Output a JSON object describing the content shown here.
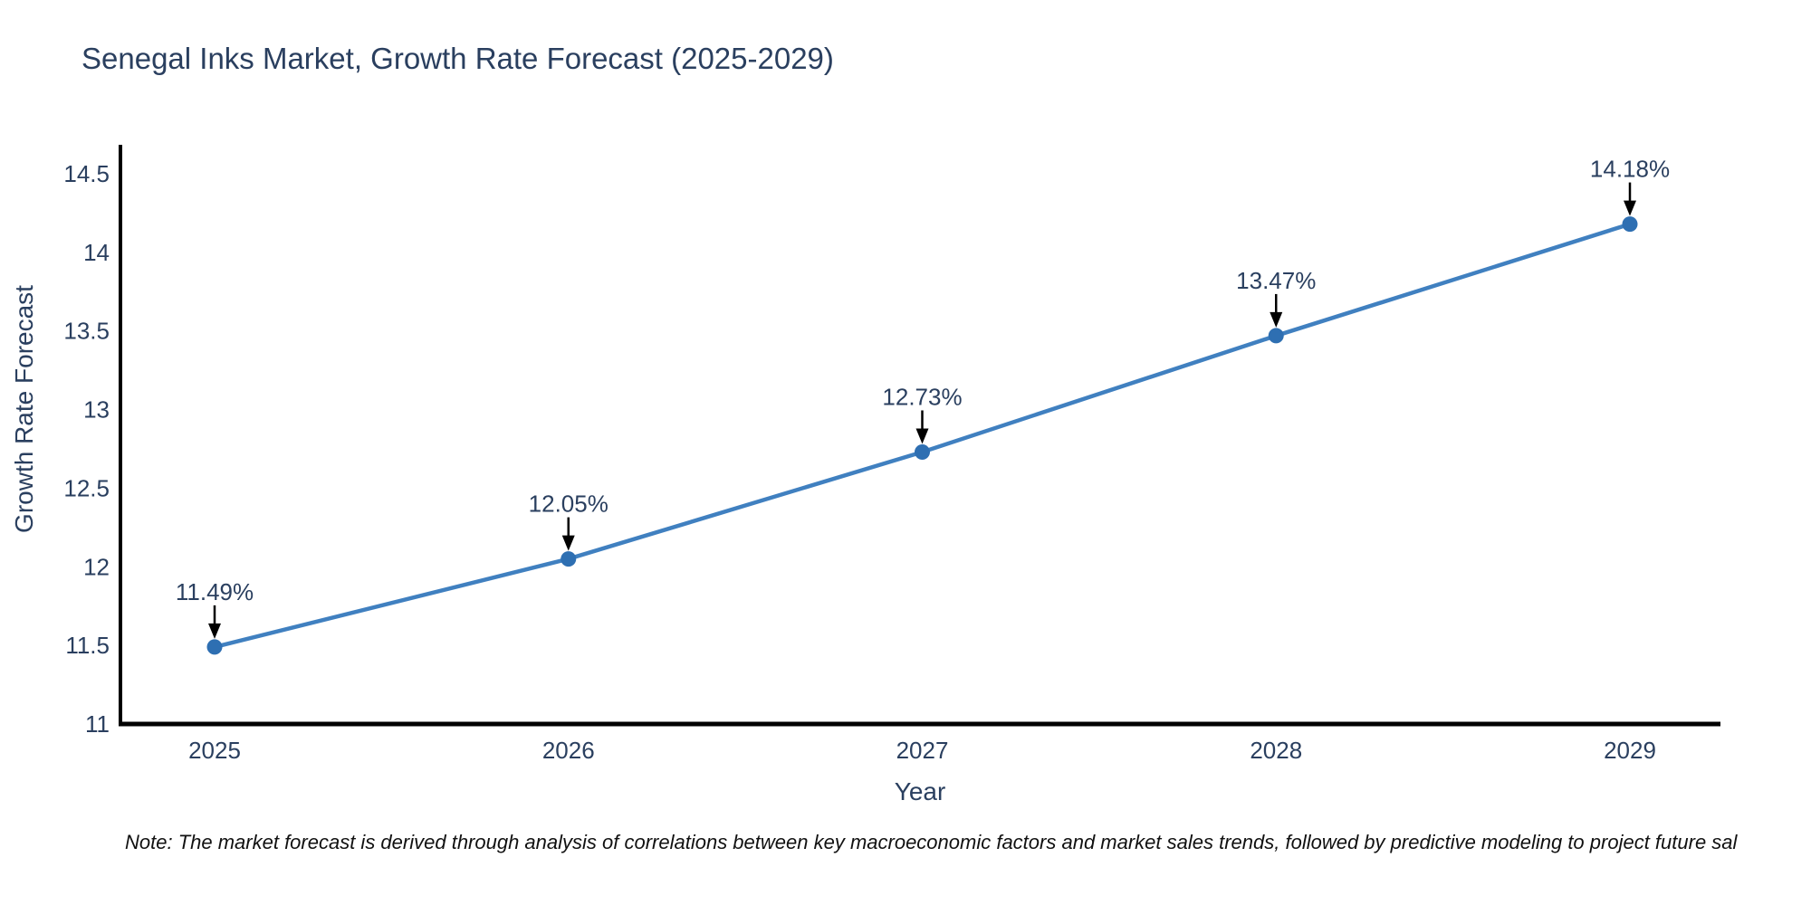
{
  "chart_data": {
    "type": "line",
    "title": "Senegal Inks Market, Growth Rate Forecast (2025-2029)",
    "xlabel": "Year",
    "ylabel": "Growth Rate Forecast",
    "x": [
      2025,
      2026,
      2027,
      2028,
      2029
    ],
    "y": [
      11.49,
      12.05,
      12.73,
      13.47,
      14.18
    ],
    "point_labels": [
      "11.49%",
      "12.05%",
      "12.73%",
      "13.47%",
      "14.18%"
    ],
    "xtick_labels": [
      "2025",
      "2026",
      "2027",
      "2028",
      "2029"
    ],
    "ytick_values": [
      11,
      11.5,
      12,
      12.5,
      13,
      13.5,
      14,
      14.5
    ],
    "ytick_labels": [
      "11",
      "11.5",
      "12",
      "12.5",
      "13",
      "13.5",
      "14",
      "14.5"
    ],
    "ylim": [
      11,
      14.5
    ],
    "grid": false,
    "legend": "none",
    "line_color": "#4080c0",
    "marker_color": "#2e6fb2",
    "arrow_color": "#000000",
    "axis_color": "#000000",
    "text_color": "#2a3f5f"
  },
  "note": "Note: The market forecast is derived through analysis of correlations between key macroeconomic factors and market sales trends, followed by predictive modeling to project future sal"
}
